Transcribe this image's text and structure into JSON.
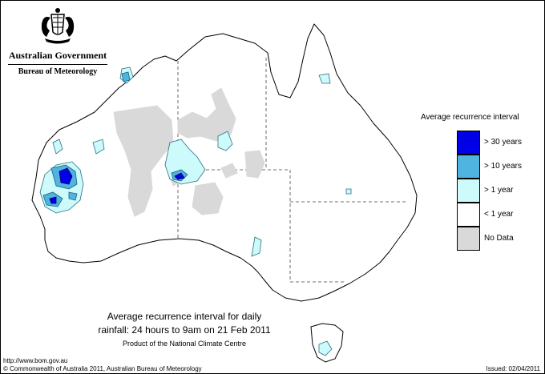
{
  "header": {
    "government": "Australian Government",
    "agency": "Bureau of Meteorology"
  },
  "colors": {
    "gt30": "#0000e6",
    "gt10": "#4fb4e0",
    "gt1": "#cdfafa",
    "lt1": "#ffffff",
    "nodata": "#d9d9d9"
  },
  "legend": {
    "title": "Average recurrence interval",
    "items": [
      {
        "label": "> 30 years",
        "color": "#0000e6"
      },
      {
        "label": "> 10 years",
        "color": "#4fb4e0"
      },
      {
        "label": "> 1 year",
        "color": "#cdfafa"
      },
      {
        "label": "< 1 year",
        "color": "#ffffff"
      },
      {
        "label": "No Data",
        "color": "#d9d9d9"
      }
    ]
  },
  "map": {
    "title_line1": "Average recurrence interval for daily",
    "title_line2": "rainfall: 24 hours to 9am on 21 Feb 2011",
    "product": "Product of the National Climate Centre"
  },
  "footer": {
    "url": "http://www.bom.gov.au",
    "copyright": "© Commonwealth of Australia 2011, Australian Bureau of Meteorology",
    "issued": "Issued: 02/04/2011"
  }
}
